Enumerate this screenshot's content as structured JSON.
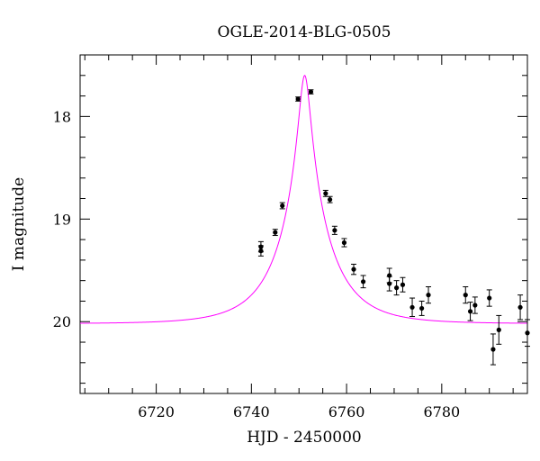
{
  "chart_data": {
    "type": "scatter",
    "title": "OGLE-2014-BLG-0505",
    "xlabel": "HJD - 2450000",
    "ylabel": "I magnitude",
    "xlim": [
      6704,
      6798
    ],
    "ylim": [
      20.7,
      17.4
    ],
    "y_inverted": true,
    "grid": false,
    "xticks": [
      6720,
      6740,
      6760,
      6780
    ],
    "yticks": [
      18,
      19,
      20
    ],
    "colors": {
      "points": "#000000",
      "model": "#ff00ff"
    },
    "series": [
      {
        "type": "scatter",
        "x": [
          6742.0,
          6742.0,
          6745.0,
          6746.5,
          6749.8,
          6752.5,
          6755.6,
          6756.5,
          6757.5,
          6759.5,
          6761.5,
          6763.5,
          6769.0,
          6769.0,
          6770.5,
          6771.8,
          6773.8,
          6775.8,
          6777.2,
          6785.0,
          6786.0,
          6787.0,
          6790.0,
          6790.8,
          6792.0,
          6796.5,
          6798.0
        ],
        "y": [
          19.27,
          19.31,
          19.13,
          18.87,
          17.83,
          17.76,
          18.75,
          18.81,
          19.11,
          19.23,
          19.49,
          19.61,
          19.55,
          19.63,
          19.67,
          19.64,
          19.86,
          19.87,
          19.74,
          19.74,
          19.9,
          19.84,
          19.77,
          20.27,
          20.08,
          19.86,
          20.11
        ],
        "yerr": [
          0.05,
          0.05,
          0.03,
          0.03,
          0.02,
          0.02,
          0.03,
          0.03,
          0.04,
          0.04,
          0.05,
          0.06,
          0.07,
          0.07,
          0.07,
          0.07,
          0.09,
          0.07,
          0.08,
          0.08,
          0.09,
          0.08,
          0.08,
          0.15,
          0.14,
          0.12,
          0.13
        ]
      },
      {
        "type": "line",
        "model": {
          "baseline": 20.02,
          "peak_mag": 17.6,
          "t0": 6751.2,
          "tE": 10.5
        }
      }
    ]
  }
}
